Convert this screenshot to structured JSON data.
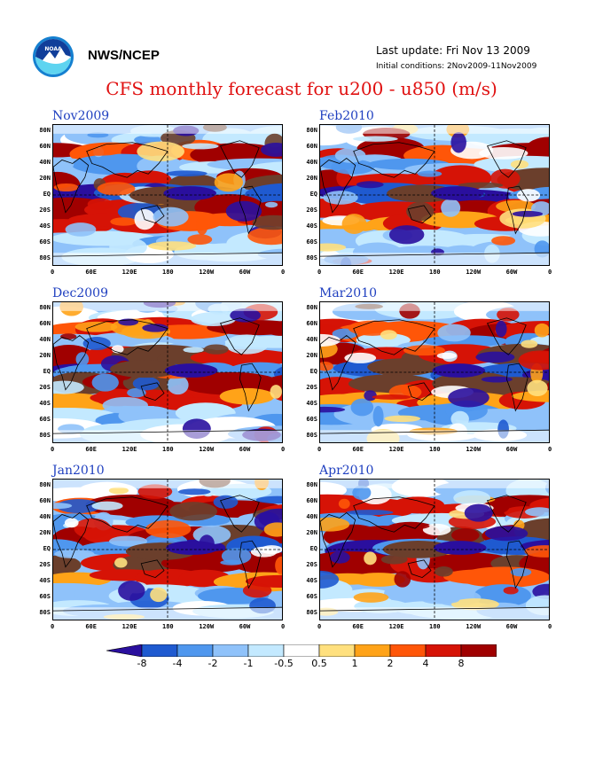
{
  "header": {
    "logo_icon": "noaa-logo-icon",
    "org": "NWS/NCEP",
    "last_update": "Last update: Fri Nov 13 2009",
    "initial_conditions": "Initial conditions: 2Nov2009-11Nov2009",
    "title": "CFS monthly forecast for u200 - u850 (m/s)"
  },
  "axes": {
    "lat_labels": [
      "80N",
      "60N",
      "40N",
      "20N",
      "EQ",
      "20S",
      "40S",
      "60S",
      "80S"
    ],
    "lon_labels": [
      "0",
      "60E",
      "120E",
      "180",
      "120W",
      "60W",
      "0"
    ]
  },
  "panels": [
    {
      "id": "nov2009",
      "title": "Nov2009"
    },
    {
      "id": "feb2010",
      "title": "Feb2010"
    },
    {
      "id": "dec2009",
      "title": "Dec2009"
    },
    {
      "id": "mar2010",
      "title": "Mar2010"
    },
    {
      "id": "jan2010",
      "title": "Jan2010"
    },
    {
      "id": "apr2010",
      "title": "Apr2010"
    }
  ],
  "colorbar": {
    "labels": [
      "-8",
      "-4",
      "-2",
      "-1",
      "-0.5",
      "0.5",
      "1",
      "2",
      "4",
      "8"
    ],
    "colors": [
      "#2a0f9e",
      "#1f5ad0",
      "#4f97ee",
      "#8fc2fa",
      "#c3e9ff",
      "#ffffff",
      "#ffe07e",
      "#ffa318",
      "#ff5608",
      "#d61306",
      "#a00000",
      "#6b3f2c"
    ]
  }
}
